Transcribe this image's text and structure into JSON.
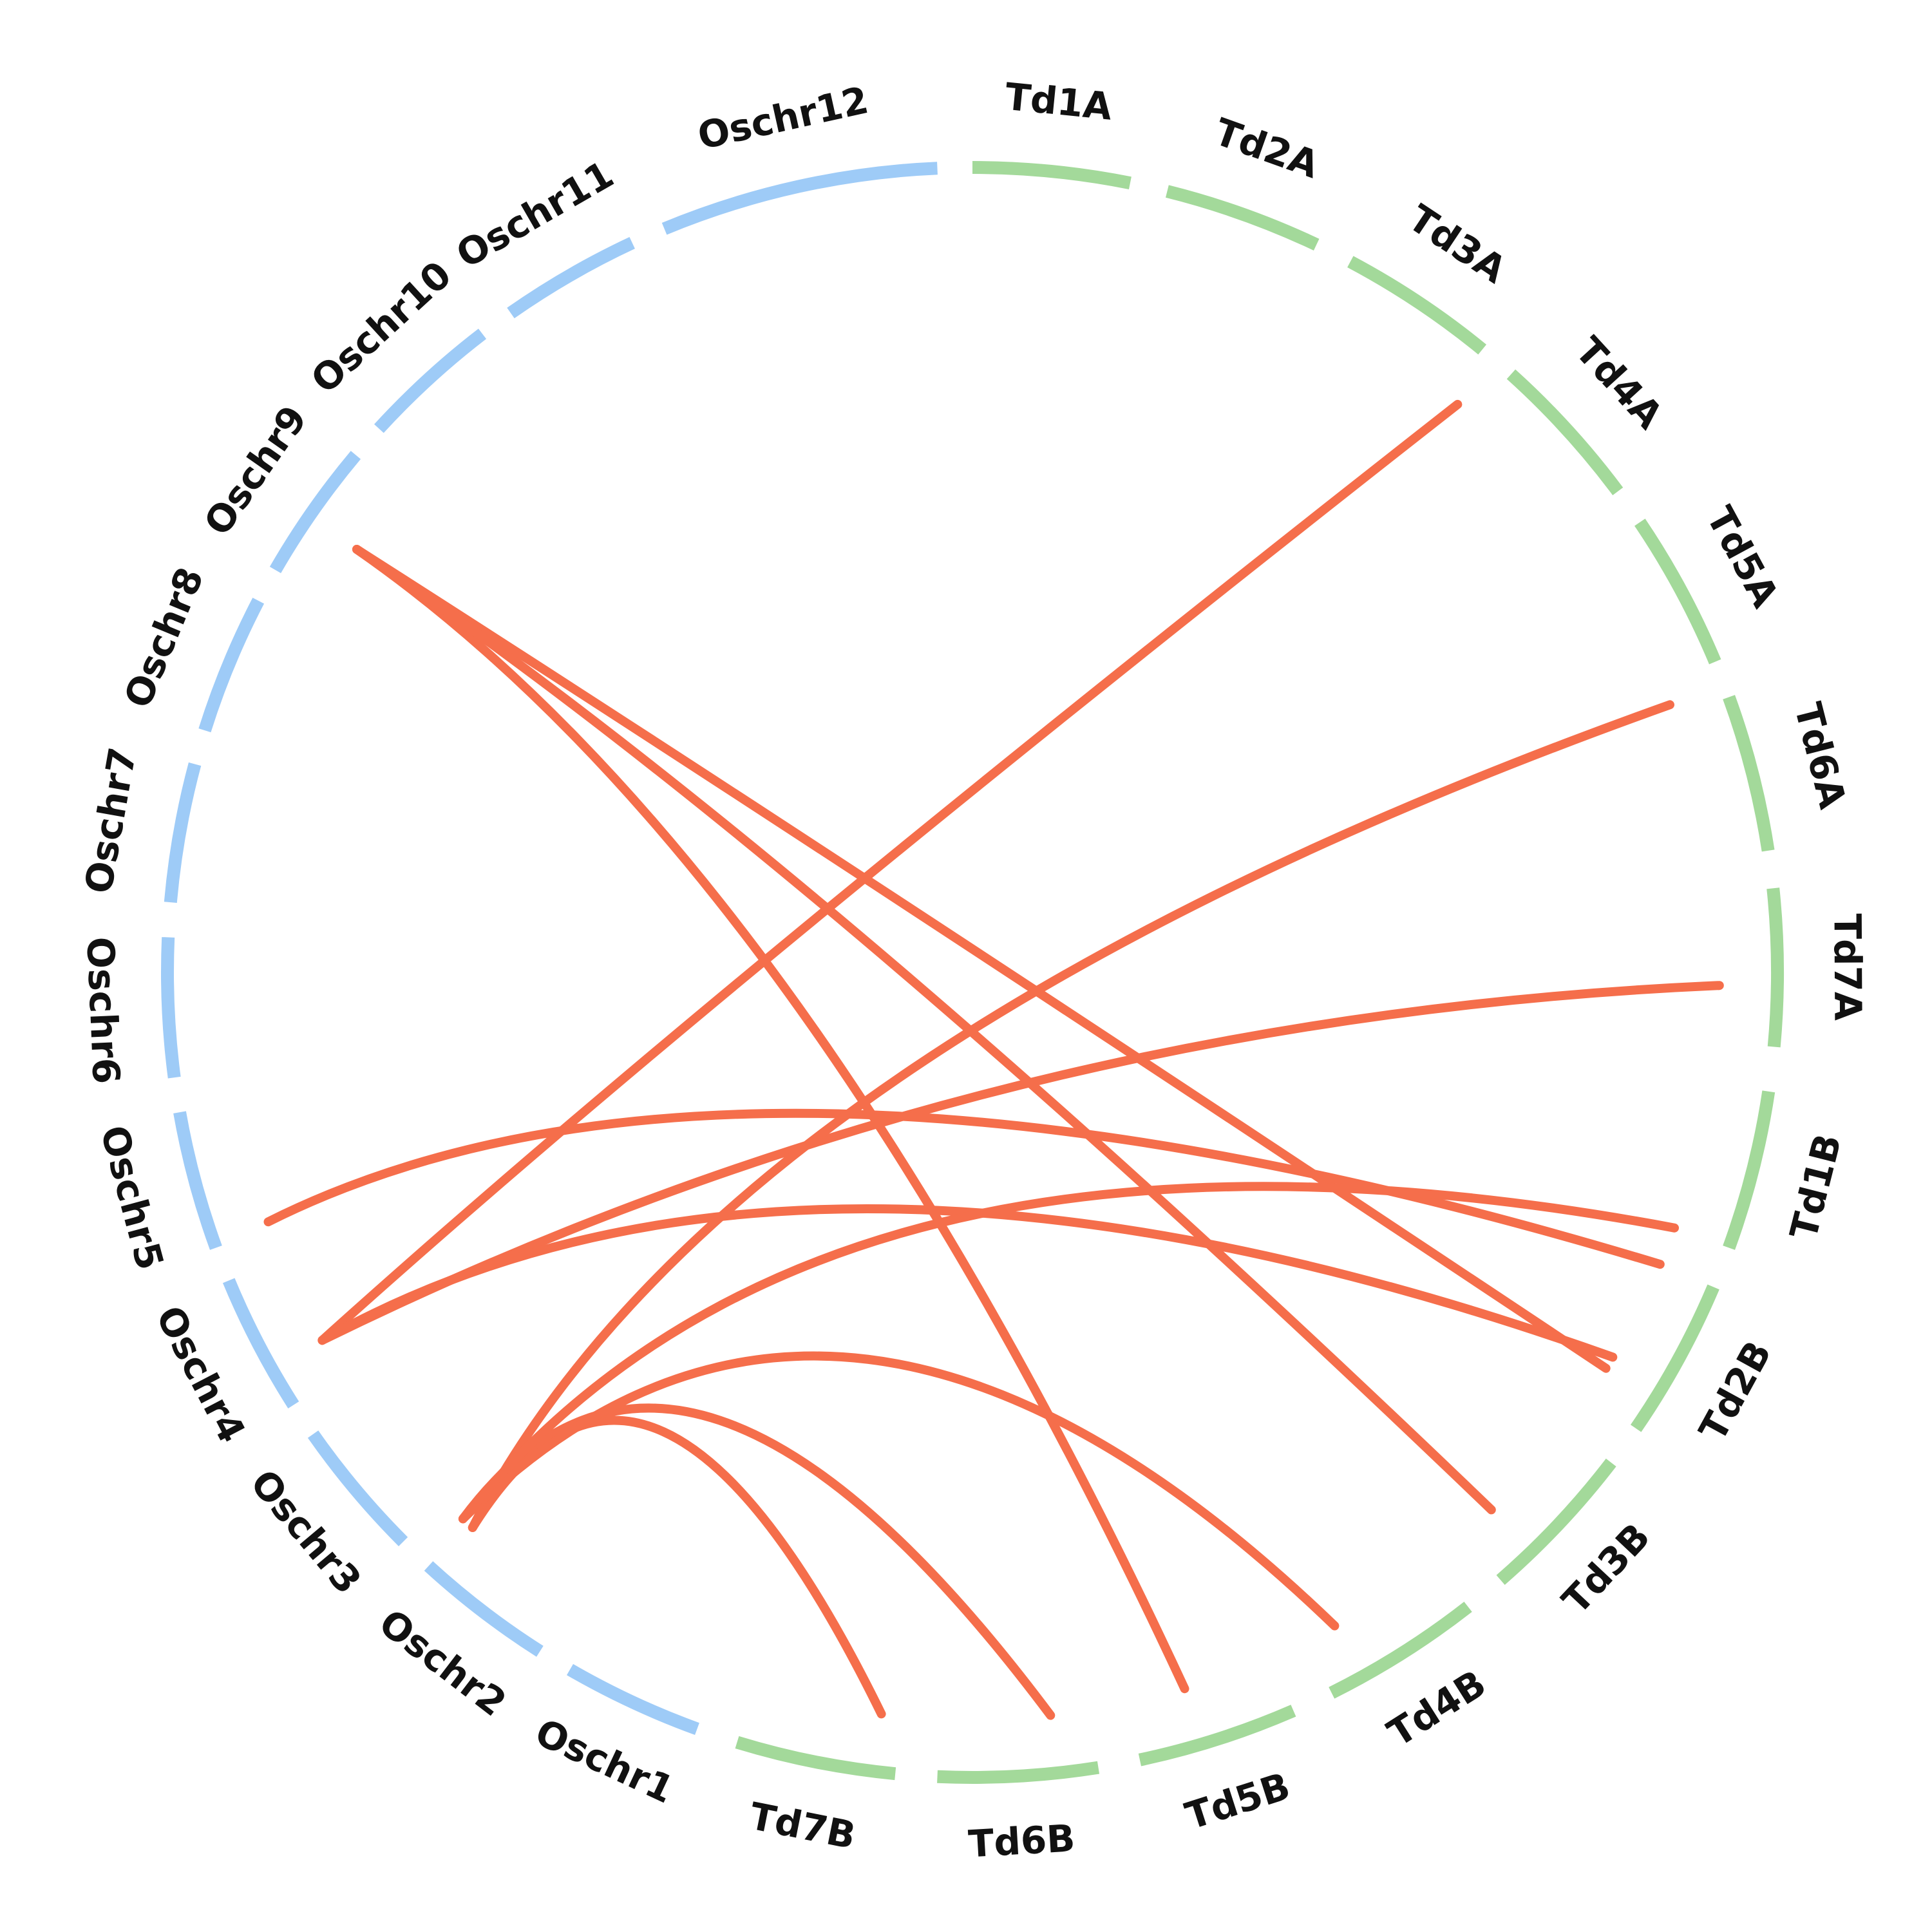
{
  "colors": {
    "rice_chromosomes": "#9ecbf7",
    "wheat_chromosomes": "#a3d99a",
    "links": "#f56e4b",
    "labels": "#111111"
  },
  "chromosomes": [
    {
      "id": "Td1A",
      "label": "Td1A",
      "group": "wheat"
    },
    {
      "id": "Td2A",
      "label": "Td2A",
      "group": "wheat"
    },
    {
      "id": "Td3A",
      "label": "Td3A",
      "group": "wheat"
    },
    {
      "id": "Td4A",
      "label": "Td4A",
      "group": "wheat"
    },
    {
      "id": "Td5A",
      "label": "Td5A",
      "group": "wheat"
    },
    {
      "id": "Td6A",
      "label": "Td6A",
      "group": "wheat"
    },
    {
      "id": "Td7A",
      "label": "Td7A",
      "group": "wheat"
    },
    {
      "id": "Td1B",
      "label": "Td1B",
      "group": "wheat"
    },
    {
      "id": "Td2B",
      "label": "Td2B",
      "group": "wheat"
    },
    {
      "id": "Td3B",
      "label": "Td3B",
      "group": "wheat"
    },
    {
      "id": "Td4B",
      "label": "Td4B",
      "group": "wheat"
    },
    {
      "id": "Td5B",
      "label": "Td5B",
      "group": "wheat"
    },
    {
      "id": "Td6B",
      "label": "Td6B",
      "group": "wheat"
    },
    {
      "id": "Td7B",
      "label": "Td7B",
      "group": "wheat"
    },
    {
      "id": "Oschr1",
      "label": "Oschr1",
      "group": "rice"
    },
    {
      "id": "Oschr2",
      "label": "Oschr2",
      "group": "rice"
    },
    {
      "id": "Oschr3",
      "label": "Oschr3",
      "group": "rice"
    },
    {
      "id": "Oschr4",
      "label": "Oschr4",
      "group": "rice"
    },
    {
      "id": "Oschr5",
      "label": "Oschr5",
      "group": "rice"
    },
    {
      "id": "Oschr6",
      "label": "Oschr6",
      "group": "rice"
    },
    {
      "id": "Oschr7",
      "label": "Oschr7",
      "group": "rice"
    },
    {
      "id": "Oschr8",
      "label": "Oschr8",
      "group": "rice"
    },
    {
      "id": "Oschr9",
      "label": "Oschr9",
      "group": "rice"
    },
    {
      "id": "Oschr10",
      "label": "Oschr10",
      "group": "rice"
    },
    {
      "id": "Oschr11",
      "label": "Oschr11",
      "group": "rice"
    },
    {
      "id": "Oschr12",
      "label": "Oschr12",
      "group": "rice"
    }
  ],
  "links": [
    {
      "from": "Oschr8",
      "to": "Td5B"
    },
    {
      "from": "Oschr8",
      "to": "Td2B"
    },
    {
      "from": "Oschr8",
      "to": "Td3B"
    },
    {
      "from": "Oschr3",
      "to": "Td3A"
    },
    {
      "from": "Oschr3",
      "to": "Td7A"
    },
    {
      "from": "Oschr3",
      "to": "Td2B"
    },
    {
      "from": "Oschr4",
      "to": "Td1B"
    },
    {
      "from": "Oschr2",
      "to": "Td6A"
    },
    {
      "from": "Oschr2",
      "to": "Td7B"
    },
    {
      "from": "Oschr2",
      "to": "Td6B"
    },
    {
      "from": "Oschr2",
      "to": "Td4B"
    },
    {
      "from": "Oschr2",
      "to": "Td1B"
    }
  ]
}
